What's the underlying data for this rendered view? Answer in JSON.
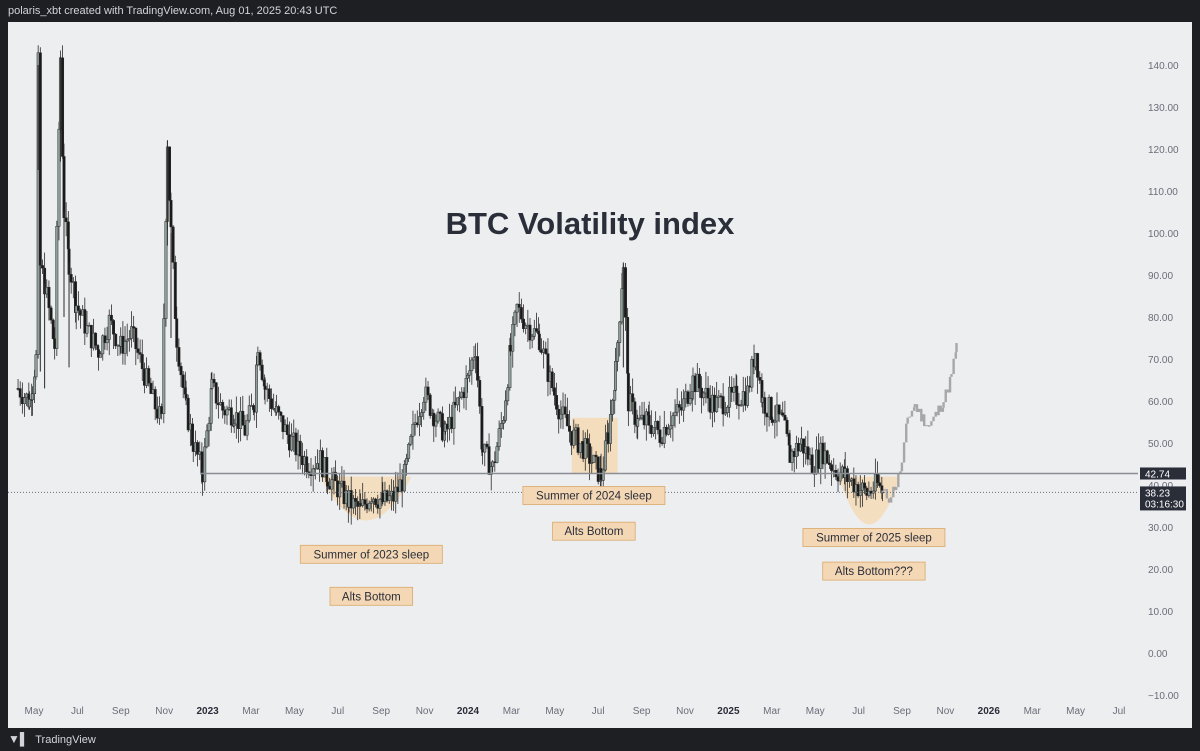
{
  "header": {
    "attribution": "polaris_xbt created with TradingView.com, Aug 01, 2025 20:43 UTC"
  },
  "footer": {
    "brand": "TradingView",
    "logo_icon": "tradingview-logo-icon"
  },
  "colors": {
    "background": "#edeef0",
    "candle_up": "#8fa09a",
    "candle_down": "#1a1a1a",
    "projection": "#a7a7a7",
    "highlight": "#f5d8b0",
    "label_bg": "#f4d7b4",
    "support_line": "#8a8d94"
  },
  "chart_data": {
    "type": "line",
    "title": "BTC Volatility index",
    "y_axis": {
      "ticks": [
        "140.00",
        "130.00",
        "120.00",
        "110.00",
        "100.00",
        "90.00",
        "80.00",
        "70.00",
        "60.00",
        "50.00",
        "40.00",
        "30.00",
        "20.00",
        "10.00",
        "0.00",
        "−10.00"
      ],
      "min": -10,
      "max": 145,
      "position": "right"
    },
    "x_axis": {
      "ticks": [
        "May",
        "Jul",
        "Sep",
        "Nov",
        "2023",
        "Mar",
        "May",
        "Jul",
        "Sep",
        "Nov",
        "2024",
        "Mar",
        "May",
        "Jul",
        "Sep",
        "Nov",
        "2025",
        "Mar",
        "May",
        "Jul",
        "Sep",
        "Nov",
        "2026",
        "Mar",
        "May",
        "Jul"
      ],
      "bold_ticks": [
        "2023",
        "2024",
        "2025",
        "2026"
      ]
    },
    "grid": false,
    "price_tags": [
      {
        "value": 42.74,
        "label": "42.74",
        "style": "line"
      },
      {
        "value": 38.23,
        "label": "38.23",
        "countdown": "03:16:30",
        "style": "dotted"
      }
    ],
    "series": [
      {
        "style": "candles-approx",
        "points": [
          [
            "2022-04",
            63
          ],
          [
            "2022-05-01",
            60
          ],
          [
            "2022-05-05",
            64
          ],
          [
            "2022-05-10",
            70
          ],
          [
            "2022-05-13",
            140
          ],
          [
            "2022-05-16",
            92
          ],
          [
            "2022-05-22",
            88
          ],
          [
            "2022-06-05",
            73
          ],
          [
            "2022-06-13",
            142
          ],
          [
            "2022-06-18",
            105
          ],
          [
            "2022-06-25",
            93
          ],
          [
            "2022-07-05",
            83
          ],
          [
            "2022-07-20",
            77
          ],
          [
            "2022-08-05",
            72
          ],
          [
            "2022-08-20",
            79
          ],
          [
            "2022-09-05",
            73
          ],
          [
            "2022-09-20",
            76
          ],
          [
            "2022-10-05",
            68
          ],
          [
            "2022-10-20",
            60
          ],
          [
            "2022-11-01",
            55
          ],
          [
            "2022-11-09",
            122
          ],
          [
            "2022-11-14",
            100
          ],
          [
            "2022-11-22",
            75
          ],
          [
            "2022-12-05",
            58
          ],
          [
            "2022-12-15",
            50
          ],
          [
            "2022-12-28",
            43
          ],
          [
            "2023-01-10",
            63
          ],
          [
            "2023-01-25",
            58
          ],
          [
            "2023-02-10",
            57
          ],
          [
            "2023-02-25",
            53
          ],
          [
            "2023-03-10",
            60
          ],
          [
            "2023-03-15",
            74
          ],
          [
            "2023-03-25",
            63
          ],
          [
            "2023-04-10",
            57
          ],
          [
            "2023-04-25",
            52
          ],
          [
            "2023-05-10",
            48
          ],
          [
            "2023-05-25",
            45
          ],
          [
            "2023-06-10",
            46
          ],
          [
            "2023-06-20",
            42
          ],
          [
            "2023-07-01",
            40
          ],
          [
            "2023-07-20",
            36
          ],
          [
            "2023-08-05",
            34
          ],
          [
            "2023-08-20",
            38
          ],
          [
            "2023-09-05",
            36
          ],
          [
            "2023-09-20",
            37
          ],
          [
            "2023-10-05",
            42
          ],
          [
            "2023-10-20",
            55
          ],
          [
            "2023-11-01",
            62
          ],
          [
            "2023-11-15",
            57
          ],
          [
            "2023-12-01",
            52
          ],
          [
            "2023-12-15",
            58
          ],
          [
            "2024-01-01",
            65
          ],
          [
            "2024-01-12",
            73
          ],
          [
            "2024-01-22",
            48
          ],
          [
            "2024-02-05",
            44
          ],
          [
            "2024-02-20",
            57
          ],
          [
            "2024-03-01",
            72
          ],
          [
            "2024-03-10",
            82
          ],
          [
            "2024-03-25",
            78
          ],
          [
            "2024-04-10",
            75
          ],
          [
            "2024-04-25",
            65
          ],
          [
            "2024-05-10",
            57
          ],
          [
            "2024-05-25",
            52
          ],
          [
            "2024-06-10",
            49
          ],
          [
            "2024-06-25",
            45
          ],
          [
            "2024-07-05",
            42
          ],
          [
            "2024-07-15",
            52
          ],
          [
            "2024-07-25",
            67
          ],
          [
            "2024-08-05",
            93
          ],
          [
            "2024-08-12",
            60
          ],
          [
            "2024-08-25",
            55
          ],
          [
            "2024-09-10",
            55
          ],
          [
            "2024-09-25",
            52
          ],
          [
            "2024-10-10",
            56
          ],
          [
            "2024-10-25",
            58
          ],
          [
            "2024-11-10",
            65
          ],
          [
            "2024-11-25",
            62
          ],
          [
            "2024-12-10",
            59
          ],
          [
            "2024-12-25",
            60
          ],
          [
            "2025-01-10",
            61
          ],
          [
            "2025-01-25",
            62
          ],
          [
            "2025-02-05",
            72
          ],
          [
            "2025-02-15",
            60
          ],
          [
            "2025-03-01",
            57
          ],
          [
            "2025-03-15",
            55
          ],
          [
            "2025-03-25",
            47
          ],
          [
            "2025-04-10",
            50
          ],
          [
            "2025-04-25",
            45
          ],
          [
            "2025-05-10",
            48
          ],
          [
            "2025-05-25",
            44
          ],
          [
            "2025-06-10",
            42
          ],
          [
            "2025-06-25",
            40
          ],
          [
            "2025-07-10",
            38
          ],
          [
            "2025-07-25",
            40
          ],
          [
            "2025-08-01",
            38.23
          ]
        ]
      },
      {
        "style": "projection",
        "points": [
          [
            "2025-08-01",
            38.23
          ],
          [
            "2025-08-10",
            37
          ],
          [
            "2025-08-20",
            40
          ],
          [
            "2025-08-28",
            45
          ],
          [
            "2025-09-05",
            56
          ],
          [
            "2025-09-15",
            59
          ],
          [
            "2025-09-25",
            56
          ],
          [
            "2025-10-05",
            54
          ],
          [
            "2025-10-15",
            57
          ],
          [
            "2025-10-25",
            60
          ],
          [
            "2025-11-05",
            66
          ],
          [
            "2025-11-12",
            73
          ]
        ]
      }
    ],
    "annotations": [
      {
        "text": "Summer of 2023 sleep",
        "kind": "label"
      },
      {
        "text": "Alts Bottom",
        "kind": "label"
      },
      {
        "text": "Summer of 2024 sleep",
        "kind": "label"
      },
      {
        "text": "Alts Bottom",
        "kind": "label"
      },
      {
        "text": "Summer of 2025 sleep",
        "kind": "label"
      },
      {
        "text": "Alts Bottom???",
        "kind": "label"
      }
    ]
  }
}
